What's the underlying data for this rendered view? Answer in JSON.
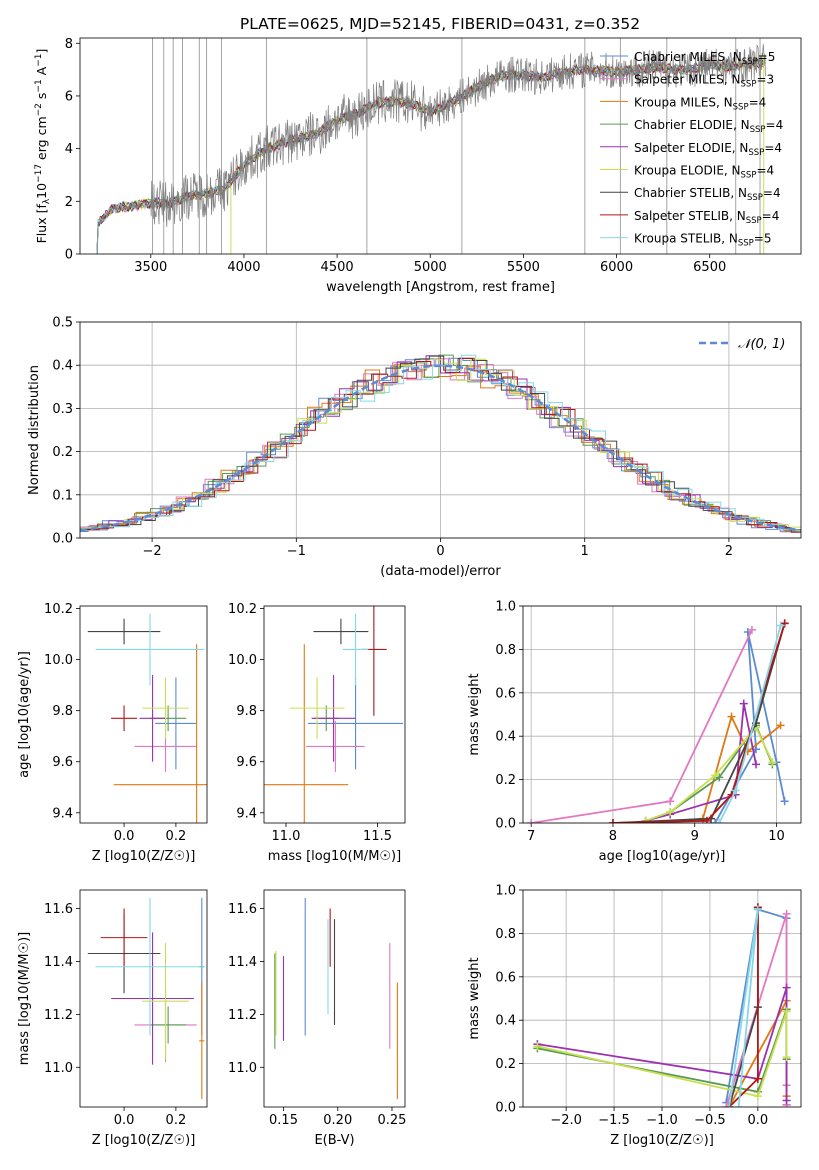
{
  "chart_data": [
    {
      "id": "spectrum",
      "type": "line",
      "title": "PLATE=0625, MJD=52145, FIBERID=0431, z=0.352",
      "xlabel": "wavelength [Angstrom, rest frame]",
      "ylabel": "Flux [f$_\\lambda$ 10$^{-17}$ erg cm$^{-2}$ s$^{-1}$ A$^{-1}$]",
      "ylabel_parts": [
        "Flux [f",
        "λ",
        "10",
        "−17",
        " erg cm",
        "−2",
        " s",
        "−1",
        " A",
        "−1",
        "]"
      ],
      "xlim": [
        3120,
        6990
      ],
      "ylim": [
        0,
        8.2
      ],
      "xticks": [
        3500,
        4000,
        4500,
        5000,
        5500,
        6000,
        6500
      ],
      "yticks": [
        0,
        2,
        4,
        6,
        8
      ],
      "grid": false,
      "legend_loc": "upper right",
      "data_curve": {
        "name": "data",
        "color": "#7f7f7f",
        "x": [
          3210,
          3300,
          3400,
          3500,
          3600,
          3700,
          3800,
          3900,
          4000,
          4100,
          4200,
          4300,
          4400,
          4500,
          4600,
          4700,
          4800,
          4900,
          5000,
          5100,
          5200,
          5300,
          5400,
          5500,
          5600,
          5700,
          5800,
          5900,
          6000,
          6100,
          6200,
          6300,
          6400,
          6500,
          6600,
          6700,
          6800
        ],
        "y": [
          1.1,
          1.75,
          1.8,
          1.95,
          1.9,
          2.2,
          2.3,
          2.5,
          3.4,
          3.9,
          4.2,
          4.4,
          4.6,
          5.1,
          5.3,
          5.7,
          5.8,
          5.7,
          5.4,
          5.7,
          6.1,
          6.5,
          6.8,
          6.8,
          6.7,
          6.9,
          7.0,
          7.0,
          6.9,
          7.0,
          7.1,
          7.0,
          7.0,
          7.2,
          7.1,
          7.2,
          7.3
        ]
      },
      "series": [
        {
          "name": "Chabrier MILES",
          "label": "Chabrier MILES, N",
          "nssp": "5",
          "color": "#5b8bd3"
        },
        {
          "name": "Salpeter MILES",
          "label": "Salpeter MILES, N",
          "nssp": "3",
          "color": "#e377c2"
        },
        {
          "name": "Kroupa MILES",
          "label": "Kroupa MILES, N",
          "nssp": "4",
          "color": "#e07a10"
        },
        {
          "name": "Chabrier ELODIE",
          "label": "Chabrier ELODIE, N",
          "nssp": "4",
          "color": "#5a9a50"
        },
        {
          "name": "Salpeter ELODIE",
          "label": "Salpeter ELODIE, N",
          "nssp": "4",
          "color": "#9b30b0"
        },
        {
          "name": "Kroupa ELODIE",
          "label": "Kroupa ELODIE, N",
          "nssp": "4",
          "color": "#c8e050"
        },
        {
          "name": "Chabrier STELIB",
          "label": "Chabrier STELIB, N",
          "nssp": "4",
          "color": "#444444"
        },
        {
          "name": "Salpeter STELIB",
          "label": "Salpeter STELIB, N",
          "nssp": "4",
          "color": "#b01818"
        },
        {
          "name": "Kroupa STELIB",
          "label": "Kroupa STELIB, N",
          "nssp": "5",
          "color": "#86d8e8"
        }
      ],
      "legend_sub": "SSP"
    },
    {
      "id": "residuals",
      "type": "line",
      "xlabel": "(data-model)/error",
      "ylabel": "Normed distribution",
      "xlim": [
        -2.5,
        2.5
      ],
      "ylim": [
        0,
        0.5
      ],
      "xticks": [
        -2,
        -1,
        0,
        1,
        2
      ],
      "yticks": [
        0.0,
        0.1,
        0.2,
        0.3,
        0.4,
        0.5
      ],
      "grid": true,
      "legend_loc": "upper right",
      "legend": "𝒩(0, 1)",
      "normal_color": "#5b8bd3"
    },
    {
      "id": "age_vs_Z",
      "type": "scatter",
      "xlabel": "Z [log10(Z/Z☉)]",
      "ylabel": "age  [log10(age/yr)]",
      "xlim": [
        -0.17,
        0.32
      ],
      "ylim": [
        9.36,
        10.21
      ],
      "xticks": [
        0.0,
        0.2
      ],
      "yticks": [
        9.4,
        9.6,
        9.8,
        10.0,
        10.2
      ],
      "grid": false,
      "points": [
        {
          "series": "Chabrier MILES",
          "x": 0.2,
          "y": 9.75,
          "xe": 0.08,
          "ye": 0.18
        },
        {
          "series": "Salpeter MILES",
          "x": 0.16,
          "y": 9.66,
          "xe": 0.12,
          "ye": 0.1
        },
        {
          "series": "Kroupa MILES",
          "x": 0.28,
          "y": 9.51,
          "xe": 0.32,
          "ye": 0.55
        },
        {
          "series": "Chabrier ELODIE",
          "x": 0.17,
          "y": 9.77,
          "xe": 0.07,
          "ye": 0.05
        },
        {
          "series": "Salpeter ELODIE",
          "x": 0.11,
          "y": 9.77,
          "xe": 0.05,
          "ye": 0.17
        },
        {
          "series": "Kroupa ELODIE",
          "x": 0.16,
          "y": 9.81,
          "xe": 0.09,
          "ye": 0.12
        },
        {
          "series": "Chabrier STELIB",
          "x": 0.0,
          "y": 10.11,
          "xe": 0.14,
          "ye": 0.05
        },
        {
          "series": "Salpeter STELIB",
          "x": 0.0,
          "y": 9.77,
          "xe": 0.05,
          "ye": 0.05
        },
        {
          "series": "Kroupa STELIB",
          "x": 0.1,
          "y": 10.04,
          "xe": 0.21,
          "ye": 0.14
        }
      ]
    },
    {
      "id": "age_vs_mass",
      "type": "scatter",
      "xlabel": "mass [log10(M/M☉)]",
      "ylabel": "",
      "xlim": [
        10.88,
        11.65
      ],
      "ylim": [
        9.36,
        10.21
      ],
      "xticks": [
        11.0,
        11.5
      ],
      "yticks": [
        9.4,
        9.6,
        9.8,
        10.0,
        10.2
      ],
      "grid": false,
      "points": [
        {
          "series": "Chabrier MILES",
          "x": 11.38,
          "y": 9.75,
          "xe": 0.26,
          "ye": 0.18
        },
        {
          "series": "Salpeter MILES",
          "x": 11.27,
          "y": 9.66,
          "xe": 0.16,
          "ye": 0.1
        },
        {
          "series": "Kroupa MILES",
          "x": 11.1,
          "y": 9.51,
          "xe": 0.24,
          "ye": 0.55
        },
        {
          "series": "Chabrier ELODIE",
          "x": 11.22,
          "y": 9.77,
          "xe": 0.07,
          "ye": 0.05
        },
        {
          "series": "Salpeter ELODIE",
          "x": 11.26,
          "y": 9.77,
          "xe": 0.12,
          "ye": 0.17
        },
        {
          "series": "Kroupa ELODIE",
          "x": 11.17,
          "y": 9.81,
          "xe": 0.15,
          "ye": 0.12
        },
        {
          "series": "Chabrier STELIB",
          "x": 11.3,
          "y": 10.11,
          "xe": 0.15,
          "ye": 0.05
        },
        {
          "series": "Salpeter STELIB",
          "x": 11.48,
          "y": 10.04,
          "xe": 0.07,
          "ye": 0.26
        },
        {
          "series": "Kroupa STELIB",
          "x": 11.38,
          "y": 10.04,
          "xe": 0.07,
          "ye": 0.14
        }
      ]
    },
    {
      "id": "weight_vs_age",
      "type": "line",
      "xlabel": "age  [log10(age/yr)]",
      "ylabel": "mass weight",
      "xlim": [
        6.9,
        10.3
      ],
      "ylim": [
        0.0,
        1.0
      ],
      "xticks": [
        7,
        8,
        9,
        10
      ],
      "yticks": [
        0.0,
        0.2,
        0.4,
        0.6,
        0.8,
        1.0
      ],
      "grid": true,
      "series": [
        {
          "name": "Chabrier MILES",
          "x": [
            9.25,
            9.75,
            9.65,
            10.0,
            10.1
          ],
          "y": [
            0.0,
            0.34,
            0.88,
            0.28,
            0.1
          ]
        },
        {
          "name": "Salpeter MILES",
          "x": [
            7.0,
            8.7,
            9.7
          ],
          "y": [
            0.0,
            0.1,
            0.89
          ]
        },
        {
          "name": "Kroupa MILES",
          "x": [
            8.4,
            9.1,
            9.45,
            9.65,
            10.05
          ],
          "y": [
            0.0,
            0.02,
            0.49,
            0.33,
            0.45
          ]
        },
        {
          "name": "Chabrier ELODIE",
          "x": [
            8.4,
            8.7,
            9.3,
            9.75,
            9.95
          ],
          "y": [
            0.01,
            0.05,
            0.21,
            0.45,
            0.27
          ]
        },
        {
          "name": "Salpeter ELODIE",
          "x": [
            8.4,
            8.7,
            9.5,
            9.6,
            9.75
          ],
          "y": [
            0.01,
            0.04,
            0.13,
            0.55,
            0.27
          ]
        },
        {
          "name": "Kroupa ELODIE",
          "x": [
            8.4,
            8.7,
            9.25,
            9.75,
            9.95
          ],
          "y": [
            0.01,
            0.05,
            0.22,
            0.44,
            0.28
          ]
        },
        {
          "name": "Chabrier STELIB",
          "x": [
            8.0,
            9.2,
            9.75,
            10.1
          ],
          "y": [
            0.0,
            0.02,
            0.46,
            0.92
          ]
        },
        {
          "name": "Salpeter STELIB",
          "x": [
            8.0,
            9.15,
            9.45,
            10.1
          ],
          "y": [
            0.0,
            0.01,
            0.13,
            0.92
          ]
        },
        {
          "name": "Kroupa STELIB",
          "x": [
            9.3,
            9.5,
            10.05
          ],
          "y": [
            0.0,
            0.15,
            0.91
          ]
        }
      ]
    },
    {
      "id": "mass_vs_Z",
      "type": "scatter",
      "xlabel": "Z [log10(Z/Z☉)]",
      "ylabel": "mass [log10(M/M☉)]",
      "xlim": [
        -0.17,
        0.32
      ],
      "ylim": [
        10.85,
        11.67
      ],
      "xticks": [
        0.0,
        0.2
      ],
      "yticks": [
        11.0,
        11.2,
        11.4,
        11.6
      ],
      "grid": false,
      "points": [
        {
          "series": "Chabrier MILES",
          "x": 0.3,
          "y": 11.38,
          "xe": 0.01,
          "ye": 0.26
        },
        {
          "series": "Salpeter MILES",
          "x": 0.16,
          "y": 11.16,
          "xe": 0.12,
          "ye": 0.14
        },
        {
          "series": "Kroupa MILES",
          "x": 0.3,
          "y": 11.1,
          "xe": 0.01,
          "ye": 0.22
        },
        {
          "series": "Chabrier ELODIE",
          "x": 0.17,
          "y": 11.16,
          "xe": 0.07,
          "ye": 0.07
        },
        {
          "series": "Salpeter ELODIE",
          "x": 0.11,
          "y": 11.26,
          "xe": 0.16,
          "ye": 0.25
        },
        {
          "series": "Kroupa ELODIE",
          "x": 0.16,
          "y": 11.25,
          "xe": 0.09,
          "ye": 0.22
        },
        {
          "series": "Chabrier STELIB",
          "x": 0.0,
          "y": 11.43,
          "xe": 0.14,
          "ye": 0.15
        },
        {
          "series": "Salpeter STELIB",
          "x": 0.0,
          "y": 11.49,
          "xe": 0.09,
          "ye": 0.11
        },
        {
          "series": "Kroupa STELIB",
          "x": 0.1,
          "y": 11.38,
          "xe": 0.21,
          "ye": 0.26
        }
      ]
    },
    {
      "id": "mass_vs_ebv",
      "type": "scatter",
      "xlabel": "E(B-V)",
      "ylabel": "",
      "xlim": [
        0.132,
        0.262
      ],
      "ylim": [
        10.85,
        11.67
      ],
      "xticks": [
        0.15,
        0.2,
        0.25
      ],
      "yticks": [
        11.0,
        11.2,
        11.4,
        11.6
      ],
      "grid": false,
      "points": [
        {
          "series": "Chabrier MILES",
          "x": 0.17,
          "y": 11.38,
          "xe": 0,
          "ye": 0.26
        },
        {
          "series": "Salpeter MILES",
          "x": 0.248,
          "y": 11.27,
          "xe": 0,
          "ye": 0.2
        },
        {
          "series": "Kroupa MILES",
          "x": 0.255,
          "y": 11.1,
          "xe": 0,
          "ye": 0.22
        },
        {
          "series": "Chabrier ELODIE",
          "x": 0.142,
          "y": 11.25,
          "xe": 0,
          "ye": 0.18
        },
        {
          "series": "Salpeter ELODIE",
          "x": 0.15,
          "y": 11.26,
          "xe": 0,
          "ye": 0.16
        },
        {
          "series": "Kroupa ELODIE",
          "x": 0.143,
          "y": 11.28,
          "xe": 0,
          "ye": 0.16
        },
        {
          "series": "Chabrier STELIB",
          "x": 0.197,
          "y": 11.36,
          "xe": 0,
          "ye": 0.2
        },
        {
          "series": "Salpeter STELIB",
          "x": 0.193,
          "y": 11.49,
          "xe": 0,
          "ye": 0.11
        },
        {
          "series": "Kroupa STELIB",
          "x": 0.191,
          "y": 11.38,
          "xe": 0,
          "ye": 0.18
        }
      ]
    },
    {
      "id": "weight_vs_Z",
      "type": "line",
      "xlabel": "Z [log10(Z/Z☉)]",
      "ylabel": "mass weight",
      "xlim": [
        -2.45,
        0.45
      ],
      "ylim": [
        0.0,
        1.0
      ],
      "xticks": [
        -2.0,
        -1.5,
        -1.0,
        -0.5,
        0.0
      ],
      "yticks": [
        0.0,
        0.2,
        0.4,
        0.6,
        0.8,
        1.0
      ],
      "grid": true,
      "series": [
        {
          "name": "Chabrier MILES",
          "x": [
            -0.33,
            0.0,
            0.3,
            0.3
          ],
          "y": [
            0.02,
            0.91,
            0.87,
            0.01
          ]
        },
        {
          "name": "Salpeter MILES",
          "x": [
            -0.33,
            0.3,
            0.3,
            0.3
          ],
          "y": [
            0.0,
            0.89,
            0.1,
            0.01
          ]
        },
        {
          "name": "Kroupa MILES",
          "x": [
            -0.3,
            0.3,
            0.3,
            0.3
          ],
          "y": [
            0.0,
            0.49,
            0.45,
            0.05
          ]
        },
        {
          "name": "Chabrier ELODIE",
          "x": [
            -2.3,
            0.0,
            0.3,
            0.3
          ],
          "y": [
            0.27,
            0.07,
            0.45,
            0.22
          ]
        },
        {
          "name": "Salpeter ELODIE",
          "x": [
            -2.3,
            0.0,
            0.3,
            0.3
          ],
          "y": [
            0.29,
            0.13,
            0.55,
            0.03
          ]
        },
        {
          "name": "Kroupa ELODIE",
          "x": [
            -2.3,
            0.0,
            0.3,
            0.3
          ],
          "y": [
            0.28,
            0.05,
            0.44,
            0.23
          ]
        },
        {
          "name": "Chabrier STELIB",
          "x": [
            -0.3,
            0.0,
            0.0
          ],
          "y": [
            0.0,
            0.46,
            0.92
          ]
        },
        {
          "name": "Salpeter STELIB",
          "x": [
            -0.3,
            0.0,
            0.0
          ],
          "y": [
            0.0,
            0.13,
            0.92
          ]
        },
        {
          "name": "Kroupa STELIB",
          "x": [
            -0.3,
            0.0,
            -0.2
          ],
          "y": [
            0.0,
            0.91,
            0.0
          ]
        }
      ]
    }
  ]
}
